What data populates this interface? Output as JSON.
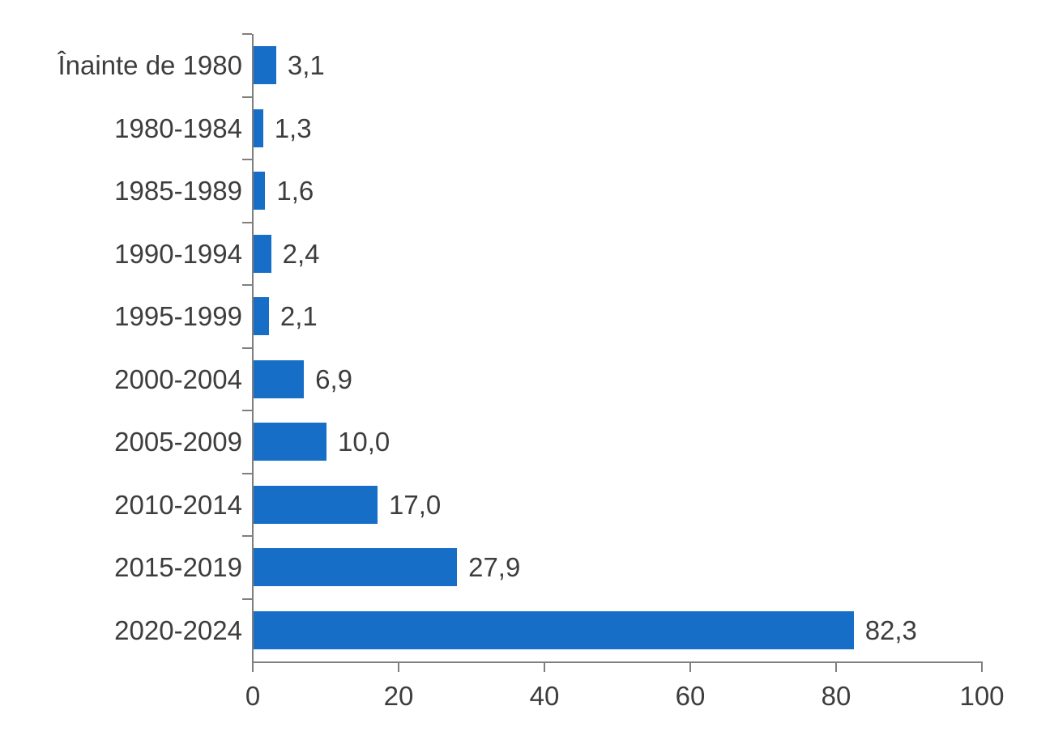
{
  "chart_data": {
    "type": "bar",
    "orientation": "horizontal",
    "title": "",
    "xlabel": "",
    "ylabel": "",
    "categories": [
      "Înainte de 1980",
      "1980-1984",
      "1985-1989",
      "1990-1994",
      "1995-1999",
      "2000-2004",
      "2005-2009",
      "2010-2014",
      "2015-2019",
      "2020-2024"
    ],
    "values": [
      3.1,
      1.3,
      1.6,
      2.4,
      2.1,
      6.9,
      10.0,
      17.0,
      27.9,
      82.3
    ],
    "value_labels": [
      "3,1",
      "1,3",
      "1,6",
      "2,4",
      "2,1",
      "6,9",
      "10,0",
      "17,0",
      "27,9",
      "82,3"
    ],
    "x_ticks": [
      0,
      20,
      40,
      60,
      80,
      100
    ],
    "x_tick_labels": [
      "0",
      "20",
      "40",
      "60",
      "80",
      "100"
    ],
    "xlim": [
      0,
      100
    ],
    "grid": false,
    "legend_position": "none",
    "bar_color": "#176EC6",
    "axis_color": "#7f7f7f",
    "label_color": "#3d3d3d"
  }
}
